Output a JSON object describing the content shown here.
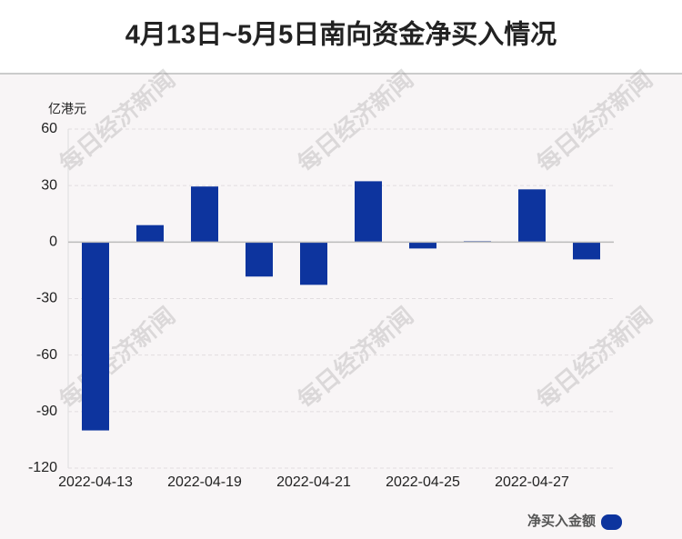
{
  "chart_data": {
    "type": "bar",
    "title": "4月13日~5月5日南向资金净买入情况",
    "unit_label": "亿港元",
    "watermark": "每日经济新闻",
    "categories": [
      "2022-04-13",
      null,
      "2022-04-19",
      null,
      "2022-04-21",
      null,
      "2022-04-25",
      null,
      "2022-04-27",
      null
    ],
    "series": [
      {
        "name": "净买入金额",
        "color": "#0d349e",
        "values": [
          -100,
          9,
          29.5,
          -18.3,
          -22.7,
          32.3,
          -3.4,
          0.5,
          28,
          -9.2
        ]
      }
    ],
    "ylim": [
      -120,
      60
    ],
    "yticks": [
      -120,
      -90,
      -60,
      -30,
      0,
      30,
      60
    ],
    "grid": true,
    "legend": "bottom-right"
  }
}
